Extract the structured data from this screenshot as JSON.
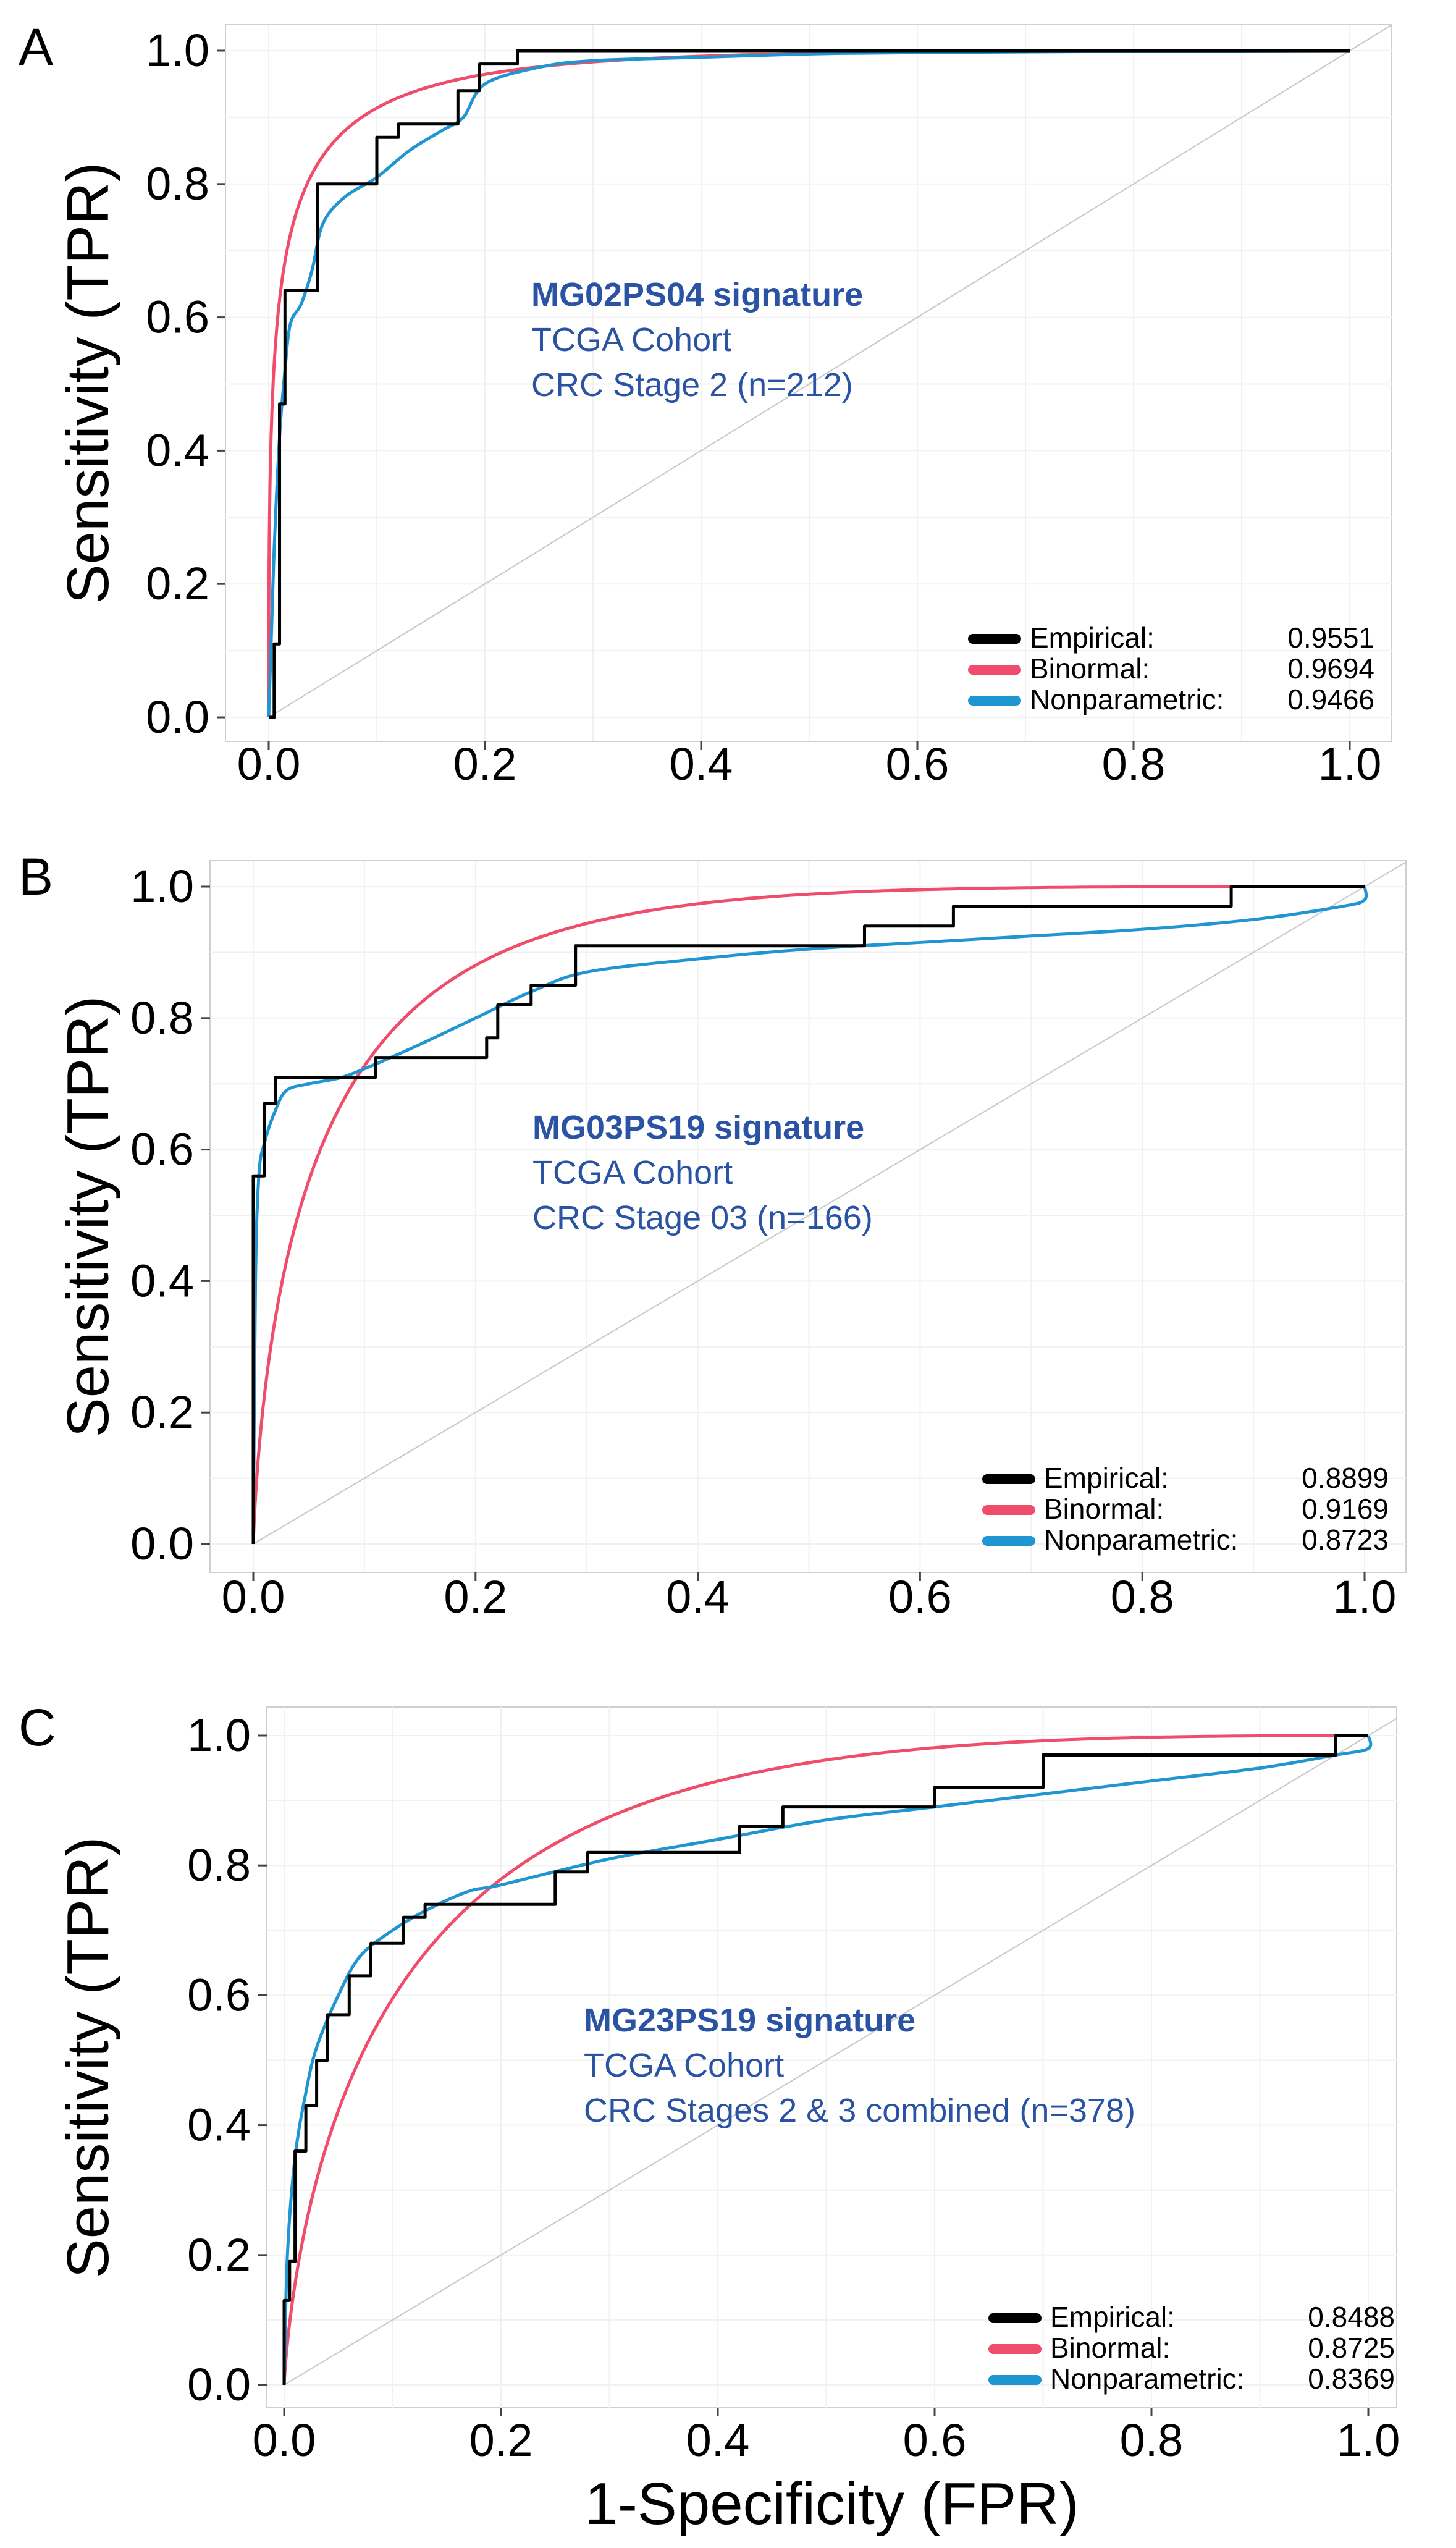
{
  "chart_data": [
    {
      "type": "line",
      "panel_label": "A",
      "title": "",
      "ylabel": "Sensitivity (TPR)",
      "xlabel": "",
      "xlim": [
        0,
        1
      ],
      "ylim": [
        0,
        1
      ],
      "x_ticks": [
        "0.0",
        "0.2",
        "0.4",
        "0.6",
        "0.8",
        "1.0"
      ],
      "y_ticks": [
        "0.0",
        "0.2",
        "0.4",
        "0.6",
        "0.8",
        "1.0"
      ],
      "annotation": {
        "title": "MG02PS04 signature",
        "lines": [
          "TCGA Cohort",
          "CRC Stage 2 (n=212)"
        ]
      },
      "legend": {
        "placement": "bottom-right",
        "entries": [
          {
            "name": "Empirical:",
            "auc": "0.9551",
            "color": "#000000"
          },
          {
            "name": "Binormal:",
            "auc": "0.9694",
            "color": "#ef4d6b"
          },
          {
            "name": "Nonparametric:",
            "auc": "0.9466",
            "color": "#1f95d1"
          }
        ]
      },
      "series": [
        {
          "name": "Empirical",
          "color": "#000000",
          "step": true,
          "x": [
            0,
            0.005,
            0.005,
            0.01,
            0.01,
            0.015,
            0.015,
            0.02,
            0.02,
            0.045,
            0.045,
            0.1,
            0.1,
            0.12,
            0.12,
            0.175,
            0.175,
            0.195,
            0.195,
            0.23,
            0.23,
            1
          ],
          "y": [
            0,
            0,
            0.11,
            0.11,
            0.47,
            0.47,
            0.64,
            0.64,
            0.64,
            0.64,
            0.8,
            0.8,
            0.87,
            0.87,
            0.89,
            0.89,
            0.94,
            0.94,
            0.98,
            0.98,
            1.0,
            1.0
          ]
        },
        {
          "name": "Binormal",
          "color": "#ef4d6b",
          "auc": 0.9694,
          "binormal_b": 1.0
        },
        {
          "name": "Nonparametric",
          "color": "#1f95d1",
          "x": [
            0,
            0.002,
            0.005,
            0.01,
            0.015,
            0.02,
            0.03,
            0.04,
            0.05,
            0.07,
            0.1,
            0.13,
            0.16,
            0.18,
            0.2,
            0.25,
            0.3,
            0.4,
            0.5,
            0.6,
            0.8,
            1.0
          ],
          "y": [
            0,
            0.1,
            0.25,
            0.42,
            0.52,
            0.59,
            0.62,
            0.67,
            0.74,
            0.78,
            0.81,
            0.85,
            0.88,
            0.9,
            0.95,
            0.975,
            0.985,
            0.99,
            0.995,
            0.997,
            0.999,
            1.0
          ]
        }
      ]
    },
    {
      "type": "line",
      "panel_label": "B",
      "title": "",
      "ylabel": "Sensitivity (TPR)",
      "xlabel": "",
      "xlim": [
        0,
        1
      ],
      "ylim": [
        0,
        1
      ],
      "x_ticks": [
        "0.0",
        "0.2",
        "0.4",
        "0.6",
        "0.8",
        "1.0"
      ],
      "y_ticks": [
        "0.0",
        "0.2",
        "0.4",
        "0.6",
        "0.8",
        "1.0"
      ],
      "annotation": {
        "title": "MG03PS19 signature",
        "lines": [
          "TCGA Cohort",
          "CRC Stage 03 (n=166)"
        ]
      },
      "legend": {
        "placement": "bottom-right",
        "entries": [
          {
            "name": "Empirical:",
            "auc": "0.8899",
            "color": "#000000"
          },
          {
            "name": "Binormal:",
            "auc": "0.9169",
            "color": "#ef4d6b"
          },
          {
            "name": "Nonparametric:",
            "auc": "0.8723",
            "color": "#1f95d1"
          }
        ]
      },
      "series": [
        {
          "name": "Empirical",
          "color": "#000000",
          "step": true,
          "x": [
            0,
            0,
            0.01,
            0.01,
            0.02,
            0.02,
            0.11,
            0.11,
            0.21,
            0.21,
            0.22,
            0.22,
            0.25,
            0.25,
            0.29,
            0.29,
            0.55,
            0.55,
            0.63,
            0.63,
            0.88,
            0.88,
            1.0
          ],
          "y": [
            0,
            0.56,
            0.56,
            0.67,
            0.67,
            0.71,
            0.71,
            0.74,
            0.74,
            0.77,
            0.77,
            0.82,
            0.82,
            0.85,
            0.85,
            0.91,
            0.91,
            0.94,
            0.94,
            0.97,
            0.97,
            1.0,
            1.0
          ]
        },
        {
          "name": "Binormal",
          "color": "#ef4d6b",
          "auc": 0.9169,
          "binormal_b": 1.3
        },
        {
          "name": "Nonparametric",
          "color": "#1f95d1",
          "x": [
            0,
            0.002,
            0.005,
            0.01,
            0.02,
            0.03,
            0.05,
            0.08,
            0.11,
            0.15,
            0.2,
            0.25,
            0.3,
            0.4,
            0.5,
            0.6,
            0.7,
            0.8,
            0.9,
            0.98,
            1.0,
            1.0
          ],
          "y": [
            0,
            0.4,
            0.56,
            0.61,
            0.66,
            0.69,
            0.7,
            0.71,
            0.73,
            0.76,
            0.8,
            0.84,
            0.87,
            0.89,
            0.905,
            0.915,
            0.925,
            0.935,
            0.95,
            0.97,
            0.98,
            1.0
          ]
        }
      ]
    },
    {
      "type": "line",
      "panel_label": "C",
      "title": "",
      "ylabel": "Sensitivity (TPR)",
      "xlabel": "1-Specificity (FPR)",
      "xlim": [
        0,
        1
      ],
      "ylim": [
        0,
        1
      ],
      "x_ticks": [
        "0.0",
        "0.2",
        "0.4",
        "0.6",
        "0.8",
        "1.0"
      ],
      "y_ticks": [
        "0.0",
        "0.2",
        "0.4",
        "0.6",
        "0.8",
        "1.0"
      ],
      "annotation": {
        "title": "MG23PS19 signature",
        "lines": [
          "TCGA Cohort",
          "CRC Stages 2 & 3 combined (n=378)"
        ]
      },
      "legend": {
        "placement": "bottom-right",
        "entries": [
          {
            "name": "Empirical:",
            "auc": "0.8488",
            "color": "#000000"
          },
          {
            "name": "Binormal:",
            "auc": "0.8725",
            "color": "#ef4d6b"
          },
          {
            "name": "Nonparametric:",
            "auc": "0.8369",
            "color": "#1f95d1"
          }
        ]
      },
      "series": [
        {
          "name": "Empirical",
          "color": "#000000",
          "step": true,
          "x": [
            0,
            0,
            0.005,
            0.005,
            0.01,
            0.01,
            0.02,
            0.02,
            0.03,
            0.03,
            0.04,
            0.04,
            0.06,
            0.06,
            0.08,
            0.08,
            0.11,
            0.11,
            0.13,
            0.13,
            0.25,
            0.25,
            0.28,
            0.28,
            0.42,
            0.42,
            0.46,
            0.46,
            0.6,
            0.6,
            0.7,
            0.7,
            0.97,
            0.97,
            1.0
          ],
          "y": [
            0,
            0.13,
            0.13,
            0.19,
            0.19,
            0.36,
            0.36,
            0.43,
            0.43,
            0.5,
            0.5,
            0.57,
            0.57,
            0.63,
            0.63,
            0.68,
            0.68,
            0.72,
            0.72,
            0.74,
            0.74,
            0.79,
            0.79,
            0.82,
            0.82,
            0.86,
            0.86,
            0.89,
            0.89,
            0.92,
            0.92,
            0.97,
            0.97,
            1.0,
            1.0
          ]
        },
        {
          "name": "Binormal",
          "color": "#ef4d6b",
          "auc": 0.8725,
          "binormal_b": 1.2
        },
        {
          "name": "Nonparametric",
          "color": "#1f95d1",
          "x": [
            0,
            0.003,
            0.01,
            0.02,
            0.03,
            0.05,
            0.07,
            0.1,
            0.13,
            0.17,
            0.2,
            0.3,
            0.4,
            0.5,
            0.6,
            0.7,
            0.8,
            0.9,
            0.97,
            1.0,
            1.0
          ],
          "y": [
            0,
            0.2,
            0.35,
            0.45,
            0.52,
            0.6,
            0.66,
            0.7,
            0.73,
            0.76,
            0.77,
            0.81,
            0.84,
            0.87,
            0.89,
            0.91,
            0.93,
            0.95,
            0.97,
            0.98,
            1.0
          ]
        }
      ]
    }
  ]
}
